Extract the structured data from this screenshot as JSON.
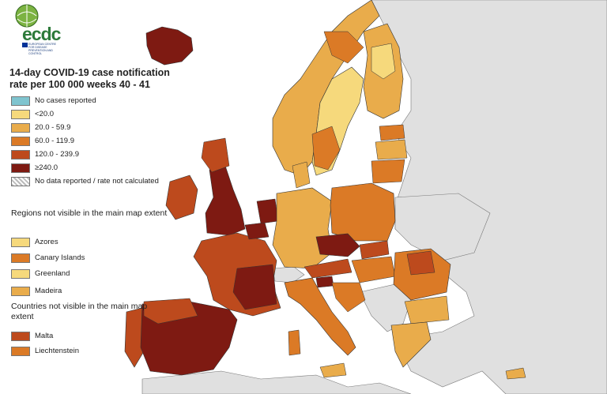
{
  "title": "14-day COVID-19 case notification rate per 100 000 weeks 40 - 41",
  "logo": {
    "text": "ecdc",
    "subtitle": "EUROPEAN CENTRE FOR DISEASE PREVENTION AND CONTROL"
  },
  "legend": [
    {
      "label": "No cases reported",
      "color": "#7fc4cf"
    },
    {
      "label": "<20.0",
      "color": "#f6d97c"
    },
    {
      "label": "20.0 - 59.9",
      "color": "#e9ac4b"
    },
    {
      "label": "60.0 - 119.9",
      "color": "#db7a26"
    },
    {
      "label": "120.0 - 239.9",
      "color": "#bd4a1d"
    },
    {
      "label": "≥240.0",
      "color": "#7e1a12"
    },
    {
      "label": "No data reported / rate not calculated",
      "color": "hatch"
    }
  ],
  "regions_section": {
    "heading": "Regions not visible in the main map extent",
    "items": [
      {
        "label": "Azores",
        "color": "#f6d97c"
      },
      {
        "label": "Canary Islands",
        "color": "#db7a26"
      },
      {
        "label": "Greenland",
        "color": "#f6d97c"
      },
      {
        "label": "Madeira",
        "color": "#e9ac4b"
      }
    ]
  },
  "countries_section": {
    "heading": "Countries not visible in the main map extent",
    "items": [
      {
        "label": "Malta",
        "color": "#bd4a1d"
      },
      {
        "label": "Liechtenstein",
        "color": "#db7a26"
      }
    ]
  },
  "colors": {
    "non_eu_land": "#e0e0e0",
    "sea": "#ffffff",
    "borders": "#333333"
  }
}
